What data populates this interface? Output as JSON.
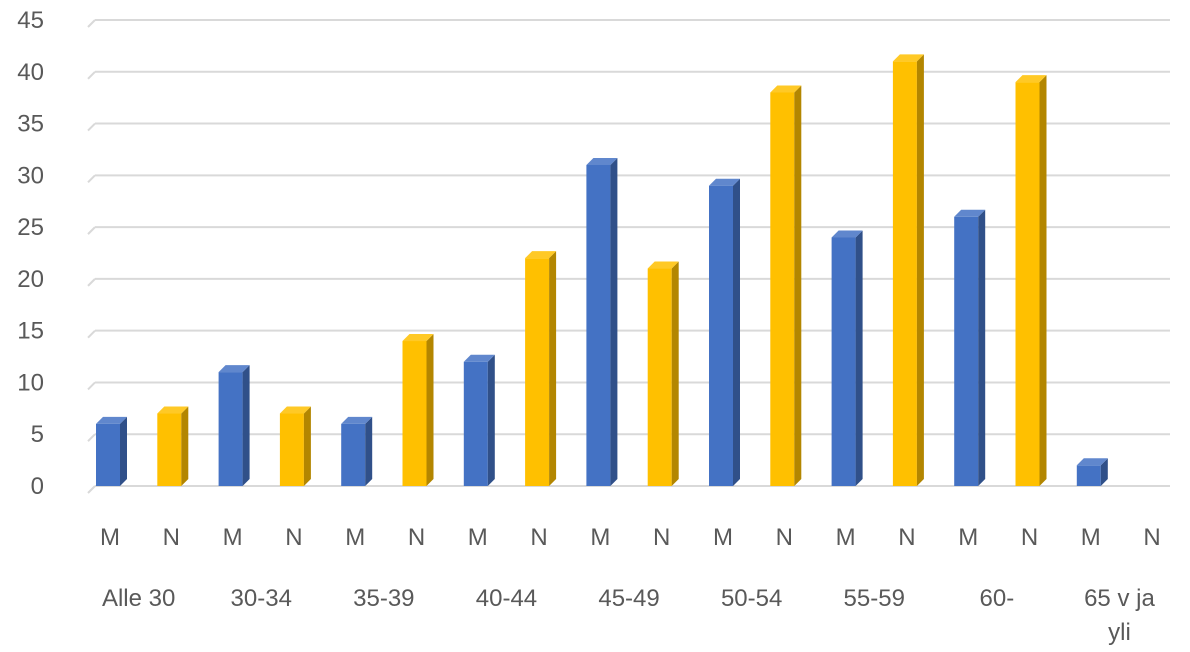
{
  "chart_data": {
    "type": "bar",
    "style": "3d-clustered-column",
    "groups": [
      "Alle 30",
      "30-34",
      "35-39",
      "40-44",
      "45-49",
      "50-54",
      "55-59",
      "60-",
      "65 v ja yli"
    ],
    "sub_categories": [
      "M",
      "N"
    ],
    "series": [
      {
        "values": [
          6,
          11,
          6,
          12,
          31,
          29,
          24,
          26,
          2
        ],
        "color": "#4472c4"
      },
      {
        "values": [
          7,
          7,
          14,
          22,
          21,
          38,
          41,
          39,
          0
        ],
        "color": "#ffc000"
      }
    ],
    "y_ticks": [
      0,
      5,
      10,
      15,
      20,
      25,
      30,
      35,
      40,
      45
    ],
    "ylim": [
      0,
      45
    ],
    "grid": true,
    "legend": "none",
    "title": "",
    "xlabel": "",
    "ylabel": ""
  }
}
